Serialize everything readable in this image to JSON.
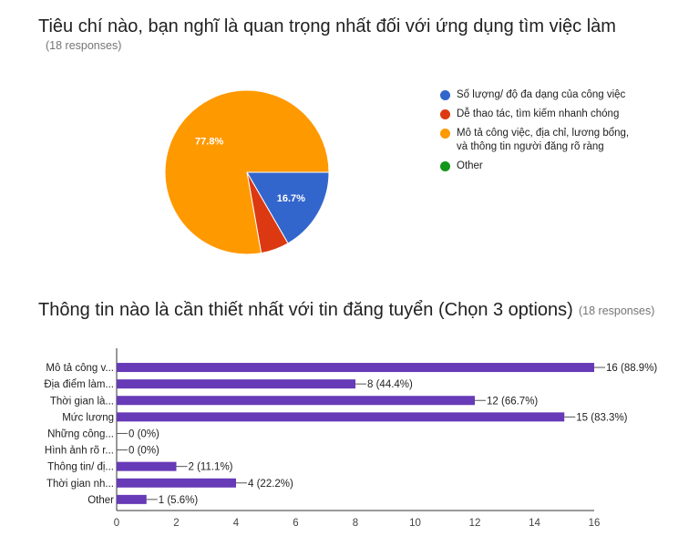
{
  "chart_data": [
    {
      "type": "pie",
      "title": "Tiêu chí nào, bạn nghĩ là quan trọng nhất đối với ứng dụng tìm việc làm",
      "subtitle": "(18 responses)",
      "categories": [
        "Số lượng/ độ đa dạng của công việc",
        "Dễ thao tác, tìm kiếm nhanh chóng",
        "Mô tả công việc, địa chỉ, lương bổng,\nvà thông tin người đăng rõ ràng",
        "Other"
      ],
      "values": [
        3,
        1,
        14,
        0
      ],
      "percent_labels": [
        "16.7%",
        "",
        "77.8%",
        ""
      ],
      "colors": [
        "#3366cc",
        "#dc3912",
        "#ff9900",
        "#109618"
      ],
      "legend": "right"
    },
    {
      "type": "bar",
      "orientation": "horizontal",
      "title": "Thông tin nào là cần thiết nhất với tin đăng tuyển (Chọn 3 options)",
      "subtitle": "(18 responses)",
      "categories": [
        "Mô tả công v...",
        "Địa điểm làm...",
        "Thời gian là...",
        "Mức lương",
        "Những công...",
        "Hình ảnh rõ r...",
        "Thông tin/ đị...",
        "Thời gian nh...",
        "Other"
      ],
      "values": [
        16,
        8,
        12,
        15,
        0,
        0,
        2,
        4,
        1
      ],
      "value_labels": [
        "16 (88.9%)",
        "8 (44.4%)",
        "12 (66.7%)",
        "15 (83.3%)",
        "0 (0%)",
        "0 (0%)",
        "2 (11.1%)",
        "4 (22.2%)",
        "1 (5.6%)"
      ],
      "xlim": [
        0,
        16
      ],
      "xticks": [
        0,
        2,
        4,
        6,
        8,
        10,
        12,
        14,
        16
      ],
      "color": "#673ab7",
      "grid": false
    }
  ]
}
